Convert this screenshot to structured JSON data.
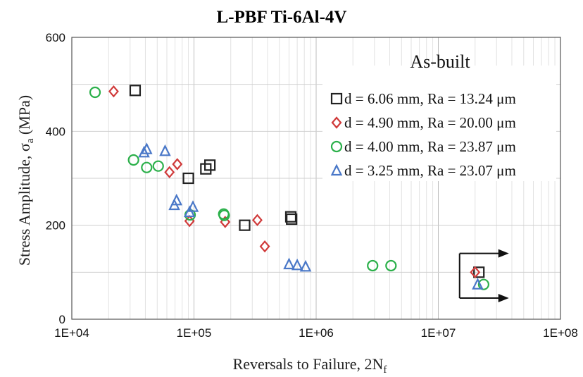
{
  "chart_data": {
    "type": "scatter",
    "title": "L-PBF Ti-6Al-4V",
    "xlabel": "Reversals to Failure, 2N",
    "xlabel_sub": "f",
    "ylabel": "Stress Amplitude,  σ",
    "ylabel_sub": "a",
    "ylabel_unit": " (MPa)",
    "x_scale": "log",
    "xlim": [
      10000,
      100000000
    ],
    "ylim": [
      0,
      600
    ],
    "x_ticks": [
      10000,
      100000,
      1000000,
      10000000,
      100000000
    ],
    "x_tick_labels": [
      "1E+04",
      "1E+05",
      "1E+06",
      "1E+07",
      "1E+08"
    ],
    "y_ticks": [
      0,
      200,
      400,
      600
    ],
    "y_tick_labels": [
      "0",
      "200",
      "400",
      "600"
    ],
    "grid": true,
    "legend_position": "top-right",
    "annotation": "As-built",
    "runout_arrows": true,
    "series": [
      {
        "name": "d = 6.06 mm, Ra = 13.24  μm",
        "marker": "square",
        "color": "#222222",
        "points": [
          {
            "x": 33000,
            "y": 487
          },
          {
            "x": 90000,
            "y": 300
          },
          {
            "x": 125000,
            "y": 320
          },
          {
            "x": 135000,
            "y": 328
          },
          {
            "x": 260000,
            "y": 200
          },
          {
            "x": 620000,
            "y": 218
          },
          {
            "x": 630000,
            "y": 213
          },
          {
            "x": 21500000,
            "y": 100
          }
        ]
      },
      {
        "name": "d = 4.90 mm, Ra = 20.00  μm",
        "marker": "diamond",
        "color": "#d03a3a",
        "points": [
          {
            "x": 22000,
            "y": 485
          },
          {
            "x": 63000,
            "y": 313
          },
          {
            "x": 73000,
            "y": 330
          },
          {
            "x": 92000,
            "y": 209
          },
          {
            "x": 180000,
            "y": 207
          },
          {
            "x": 330000,
            "y": 211
          },
          {
            "x": 380000,
            "y": 155
          },
          {
            "x": 20000000,
            "y": 100
          }
        ]
      },
      {
        "name": "d = 4.00 mm, Ra = 23.87  μm",
        "marker": "circle",
        "color": "#2bb04a",
        "points": [
          {
            "x": 15500,
            "y": 483
          },
          {
            "x": 32000,
            "y": 339
          },
          {
            "x": 41000,
            "y": 323
          },
          {
            "x": 51000,
            "y": 326
          },
          {
            "x": 93000,
            "y": 222
          },
          {
            "x": 175000,
            "y": 224
          },
          {
            "x": 177000,
            "y": 221
          },
          {
            "x": 2900000,
            "y": 114
          },
          {
            "x": 4100000,
            "y": 114
          },
          {
            "x": 23500000,
            "y": 74
          }
        ]
      },
      {
        "name": "d = 3.25 mm, Ra = 23.07  μm",
        "marker": "triangle",
        "color": "#4a78c8",
        "points": [
          {
            "x": 39000,
            "y": 355
          },
          {
            "x": 41000,
            "y": 362
          },
          {
            "x": 58000,
            "y": 358
          },
          {
            "x": 69000,
            "y": 243
          },
          {
            "x": 72000,
            "y": 253
          },
          {
            "x": 92000,
            "y": 228
          },
          {
            "x": 98000,
            "y": 239
          },
          {
            "x": 600000,
            "y": 117
          },
          {
            "x": 700000,
            "y": 115
          },
          {
            "x": 820000,
            "y": 112
          },
          {
            "x": 21000000,
            "y": 74
          }
        ]
      }
    ]
  }
}
